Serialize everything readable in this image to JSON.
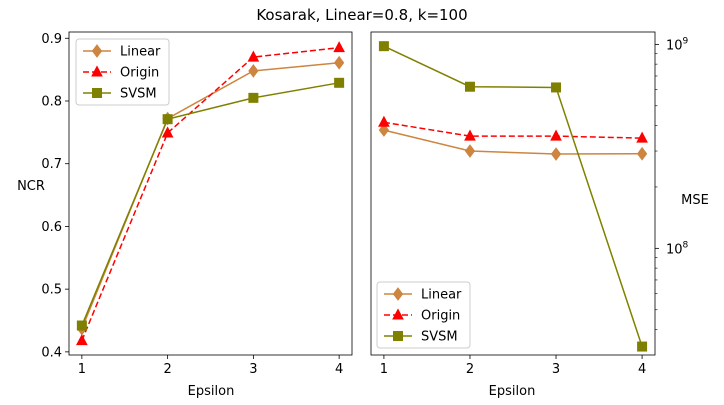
{
  "figure": {
    "title": "Kosarak, Linear=0.8, k=100"
  },
  "colors": {
    "Linear": "#cd853f",
    "Origin": "#ff0000",
    "SVSM": "#808000"
  },
  "chart_data": [
    {
      "type": "line",
      "xlabel": "Epsilon",
      "ylabel": "NCR",
      "x": [
        1,
        2,
        3,
        4
      ],
      "xlim": [
        0.85,
        4.15
      ],
      "ylim": [
        0.395,
        0.91
      ],
      "xticks": [
        "1",
        "2",
        "3",
        "4"
      ],
      "yticks": [
        "0.4",
        "0.5",
        "0.6",
        "0.7",
        "0.8",
        "0.9"
      ],
      "ytick_values": [
        0.4,
        0.5,
        0.6,
        0.7,
        0.8,
        0.9
      ],
      "yscale": "linear",
      "legend": "upper left",
      "series": [
        {
          "name": "Linear",
          "values": [
            0.437,
            0.772,
            0.848,
            0.861
          ]
        },
        {
          "name": "Origin",
          "values": [
            0.418,
            0.749,
            0.87,
            0.885
          ]
        },
        {
          "name": "SVSM",
          "values": [
            0.442,
            0.771,
            0.805,
            0.829
          ]
        }
      ]
    },
    {
      "type": "line",
      "xlabel": "Epsilon",
      "ylabel": "MSE",
      "x": [
        1,
        2,
        3,
        4
      ],
      "xlim": [
        0.85,
        4.15
      ],
      "ylim": [
        30000000,
        1150000000
      ],
      "xticks": [
        "1",
        "2",
        "3",
        "4"
      ],
      "yscale": "log",
      "yaxis_side": "right",
      "ytick_labels": [
        {
          "value": 100000000,
          "base": "10",
          "exp": "8"
        },
        {
          "value": 1000000000,
          "base": "10",
          "exp": "9"
        }
      ],
      "legend": "lower left",
      "series": [
        {
          "name": "Linear",
          "values": [
            380000000,
            300000000,
            290000000,
            291000000
          ]
        },
        {
          "name": "Origin",
          "values": [
            415000000,
            355000000,
            355000000,
            347000000
          ]
        },
        {
          "name": "SVSM",
          "values": [
            980000000,
            620000000,
            615000000,
            33000000
          ]
        }
      ]
    }
  ]
}
